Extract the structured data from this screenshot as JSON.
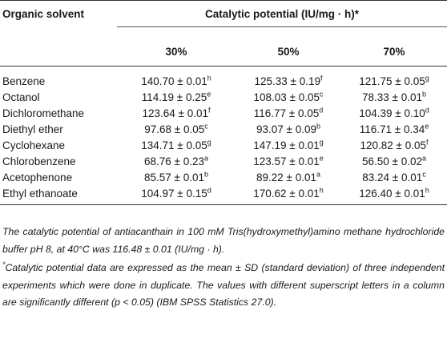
{
  "header": {
    "col0": "Organic solvent",
    "span": "Catalytic potential (IU/mg · h)*",
    "sub": [
      "30%",
      "50%",
      "70%"
    ]
  },
  "rows": [
    {
      "name": "Benzene",
      "c": [
        {
          "v": "140.70 ± 0.01",
          "s": "h"
        },
        {
          "v": "125.33 ± 0.19",
          "s": "f"
        },
        {
          "v": "121.75 ± 0.05",
          "s": "g"
        }
      ]
    },
    {
      "name": "Octanol",
      "c": [
        {
          "v": "114.19 ± 0.25",
          "s": "e"
        },
        {
          "v": "108.03 ± 0.05",
          "s": "c"
        },
        {
          "v": "78.33 ± 0.01",
          "s": "b"
        }
      ]
    },
    {
      "name": "Dichloromethane",
      "c": [
        {
          "v": "123.64 ± 0.01",
          "s": "f"
        },
        {
          "v": "116.77 ± 0.05",
          "s": "d"
        },
        {
          "v": "104.39 ± 0.10",
          "s": "d"
        }
      ]
    },
    {
      "name": "Diethyl ether",
      "c": [
        {
          "v": "97.68 ± 0.05",
          "s": "c"
        },
        {
          "v": "93.07 ± 0.09",
          "s": "b"
        },
        {
          "v": "116.71 ± 0.34",
          "s": "e"
        }
      ]
    },
    {
      "name": "Cyclohexane",
      "c": [
        {
          "v": "134.71 ± 0.05",
          "s": "g"
        },
        {
          "v": "147.19 ± 0.01",
          "s": "g"
        },
        {
          "v": "120.82 ± 0.05",
          "s": "f"
        }
      ]
    },
    {
      "name": "Chlorobenzene",
      "c": [
        {
          "v": "68.76 ± 0.23",
          "s": "a"
        },
        {
          "v": "123.57 ± 0.01",
          "s": "e"
        },
        {
          "v": "56.50 ± 0.02",
          "s": "a"
        }
      ]
    },
    {
      "name": "Acetophenone",
      "c": [
        {
          "v": "85.57 ± 0.01",
          "s": "b"
        },
        {
          "v": "89.22 ± 0.01",
          "s": "a"
        },
        {
          "v": "83.24 ± 0.01",
          "s": "c"
        }
      ]
    },
    {
      "name": "Ethyl ethanoate",
      "c": [
        {
          "v": "104.97 ± 0.15",
          "s": "d"
        },
        {
          "v": "170.62 ± 0.01",
          "s": "h"
        },
        {
          "v": "126.40 ± 0.01",
          "s": "h"
        }
      ]
    }
  ],
  "notes": {
    "n1": "The catalytic potential of antiacanthain in 100 mM Tris(hydroxymethyl)amino methane hydrochloride buffer pH 8, at 40°C was 116.48 ± 0.01 (IU/mg · h).",
    "n2_mark": "*",
    "n2": "Catalytic potential data are expressed as the mean ± SD (standard deviation) of three independent experiments which were done in duplicate. The values with different superscript letters in a column are significantly different (p < 0.05) (IBM SPSS Statistics 27.0)."
  }
}
